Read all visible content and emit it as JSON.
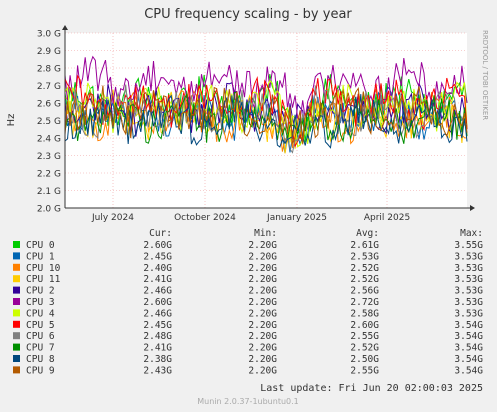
{
  "chart_data": {
    "type": "line",
    "title": "CPU frequency scaling - by year",
    "ylabel": "Hz",
    "side_label": "RRDTOOL / TOBI OETIKER",
    "ylim": [
      2.0,
      3.0
    ],
    "y_ticks": [
      {
        "value": 2.0,
        "label": "2.0 G"
      },
      {
        "value": 2.1,
        "label": "2.1 G"
      },
      {
        "value": 2.2,
        "label": "2.2 G"
      },
      {
        "value": 2.3,
        "label": "2.3 G"
      },
      {
        "value": 2.4,
        "label": "2.4 G"
      },
      {
        "value": 2.5,
        "label": "2.5 G"
      },
      {
        "value": 2.6,
        "label": "2.6 G"
      },
      {
        "value": 2.7,
        "label": "2.7 G"
      },
      {
        "value": 2.8,
        "label": "2.8 G"
      },
      {
        "value": 2.9,
        "label": "2.9 G"
      },
      {
        "value": 3.0,
        "label": "3.0 G"
      }
    ],
    "x_range": [
      "2024-05-14",
      "2025-06-20"
    ],
    "x_ticks": [
      {
        "date": "2024-07-01",
        "label": "July 2024"
      },
      {
        "date": "2024-10-01",
        "label": "October 2024"
      },
      {
        "date": "2025-01-01",
        "label": "January 2025"
      },
      {
        "date": "2025-04-01",
        "label": "April 2025"
      }
    ],
    "grid": true,
    "legend_headers": {
      "cur": "Cur:",
      "min": "Min:",
      "avg": "Avg:",
      "max": "Max:"
    },
    "series": [
      {
        "name": "CPU 0",
        "color": "#00cc00",
        "cur": "2.60G",
        "min": "2.20G",
        "avg": "2.61G",
        "max": "3.55G"
      },
      {
        "name": "CPU 1",
        "color": "#0066b3",
        "cur": "2.45G",
        "min": "2.20G",
        "avg": "2.53G",
        "max": "3.53G"
      },
      {
        "name": "CPU 10",
        "color": "#ff8000",
        "cur": "2.40G",
        "min": "2.20G",
        "avg": "2.52G",
        "max": "3.53G"
      },
      {
        "name": "CPU 11",
        "color": "#ffcc00",
        "cur": "2.41G",
        "min": "2.20G",
        "avg": "2.52G",
        "max": "3.53G"
      },
      {
        "name": "CPU 2",
        "color": "#330099",
        "cur": "2.46G",
        "min": "2.20G",
        "avg": "2.56G",
        "max": "3.53G"
      },
      {
        "name": "CPU 3",
        "color": "#990099",
        "cur": "2.60G",
        "min": "2.20G",
        "avg": "2.72G",
        "max": "3.53G"
      },
      {
        "name": "CPU 4",
        "color": "#ccff00",
        "cur": "2.46G",
        "min": "2.20G",
        "avg": "2.58G",
        "max": "3.53G"
      },
      {
        "name": "CPU 5",
        "color": "#ff0000",
        "cur": "2.45G",
        "min": "2.20G",
        "avg": "2.60G",
        "max": "3.54G"
      },
      {
        "name": "CPU 6",
        "color": "#808080",
        "cur": "2.48G",
        "min": "2.20G",
        "avg": "2.55G",
        "max": "3.54G"
      },
      {
        "name": "CPU 7",
        "color": "#008f00",
        "cur": "2.41G",
        "min": "2.20G",
        "avg": "2.52G",
        "max": "3.54G"
      },
      {
        "name": "CPU 8",
        "color": "#00487d",
        "cur": "2.38G",
        "min": "2.20G",
        "avg": "2.50G",
        "max": "3.54G"
      },
      {
        "name": "CPU 9",
        "color": "#b35a00",
        "cur": "2.43G",
        "min": "2.20G",
        "avg": "2.55G",
        "max": "3.54G"
      }
    ],
    "last_update": "Last update: Fri Jun 20 02:00:03 2025",
    "footer": "Munin 2.0.37-1ubuntu0.1"
  }
}
